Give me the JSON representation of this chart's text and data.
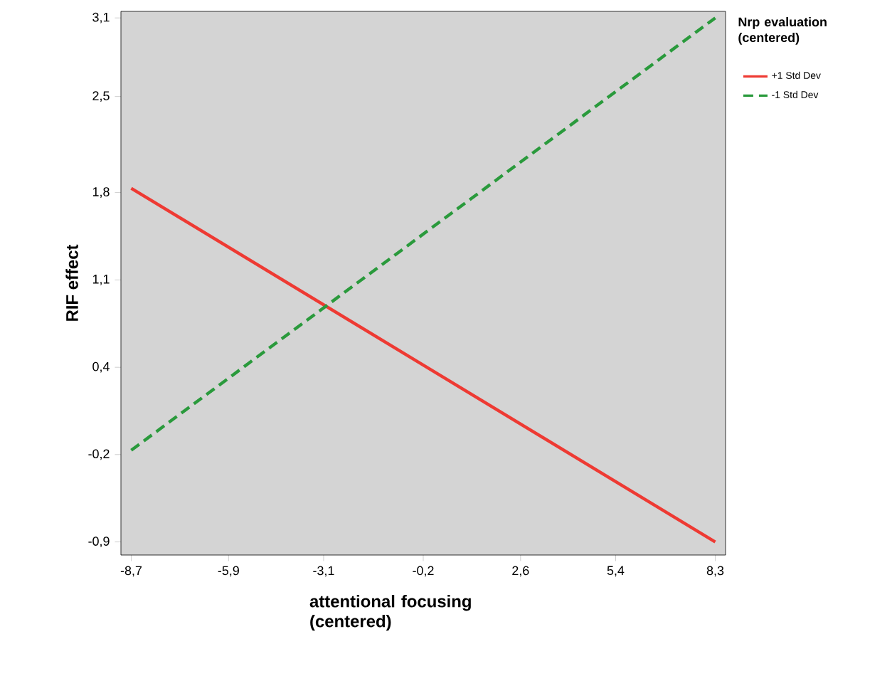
{
  "chart_data": {
    "type": "line",
    "xlabel": "attentional focusing (centered)",
    "ylabel": "RIF effect",
    "legend_title": "Nrp evaluation (centered)",
    "legend": "right",
    "marker": "none",
    "grid": false,
    "x": [
      -8.7,
      8.3
    ],
    "series": [
      {
        "name": "+1 Std Dev",
        "color": "#ee3a33",
        "line_style": "solid",
        "values": [
          1.8,
          -0.9
        ]
      },
      {
        "name": "-1 Std Dev",
        "color": "#2a9a3c",
        "line_style": "dashed",
        "values": [
          -0.2,
          3.1
        ]
      }
    ],
    "xlim": [
      -9.0,
      8.6
    ],
    "ylim": [
      -1.0,
      3.15
    ],
    "xticks": [
      {
        "value": -8.7,
        "label": "-8,7"
      },
      {
        "value": -5.867,
        "label": "-5,9"
      },
      {
        "value": -3.1,
        "label": "-3,1"
      },
      {
        "value": -0.2,
        "label": "-0,2"
      },
      {
        "value": 2.633,
        "label": "2,6"
      },
      {
        "value": 5.4,
        "label": "5,4"
      },
      {
        "value": 8.3,
        "label": "8,3"
      }
    ],
    "yticks": [
      {
        "value": -0.9,
        "label": "-0,9"
      },
      {
        "value": -0.233,
        "label": "-0,2"
      },
      {
        "value": 0.433,
        "label": "0,4"
      },
      {
        "value": 1.1,
        "label": "1,1"
      },
      {
        "value": 1.767,
        "label": "1,8"
      },
      {
        "value": 2.5,
        "label": "2,5"
      },
      {
        "value": 3.1,
        "label": "3,1"
      }
    ]
  }
}
